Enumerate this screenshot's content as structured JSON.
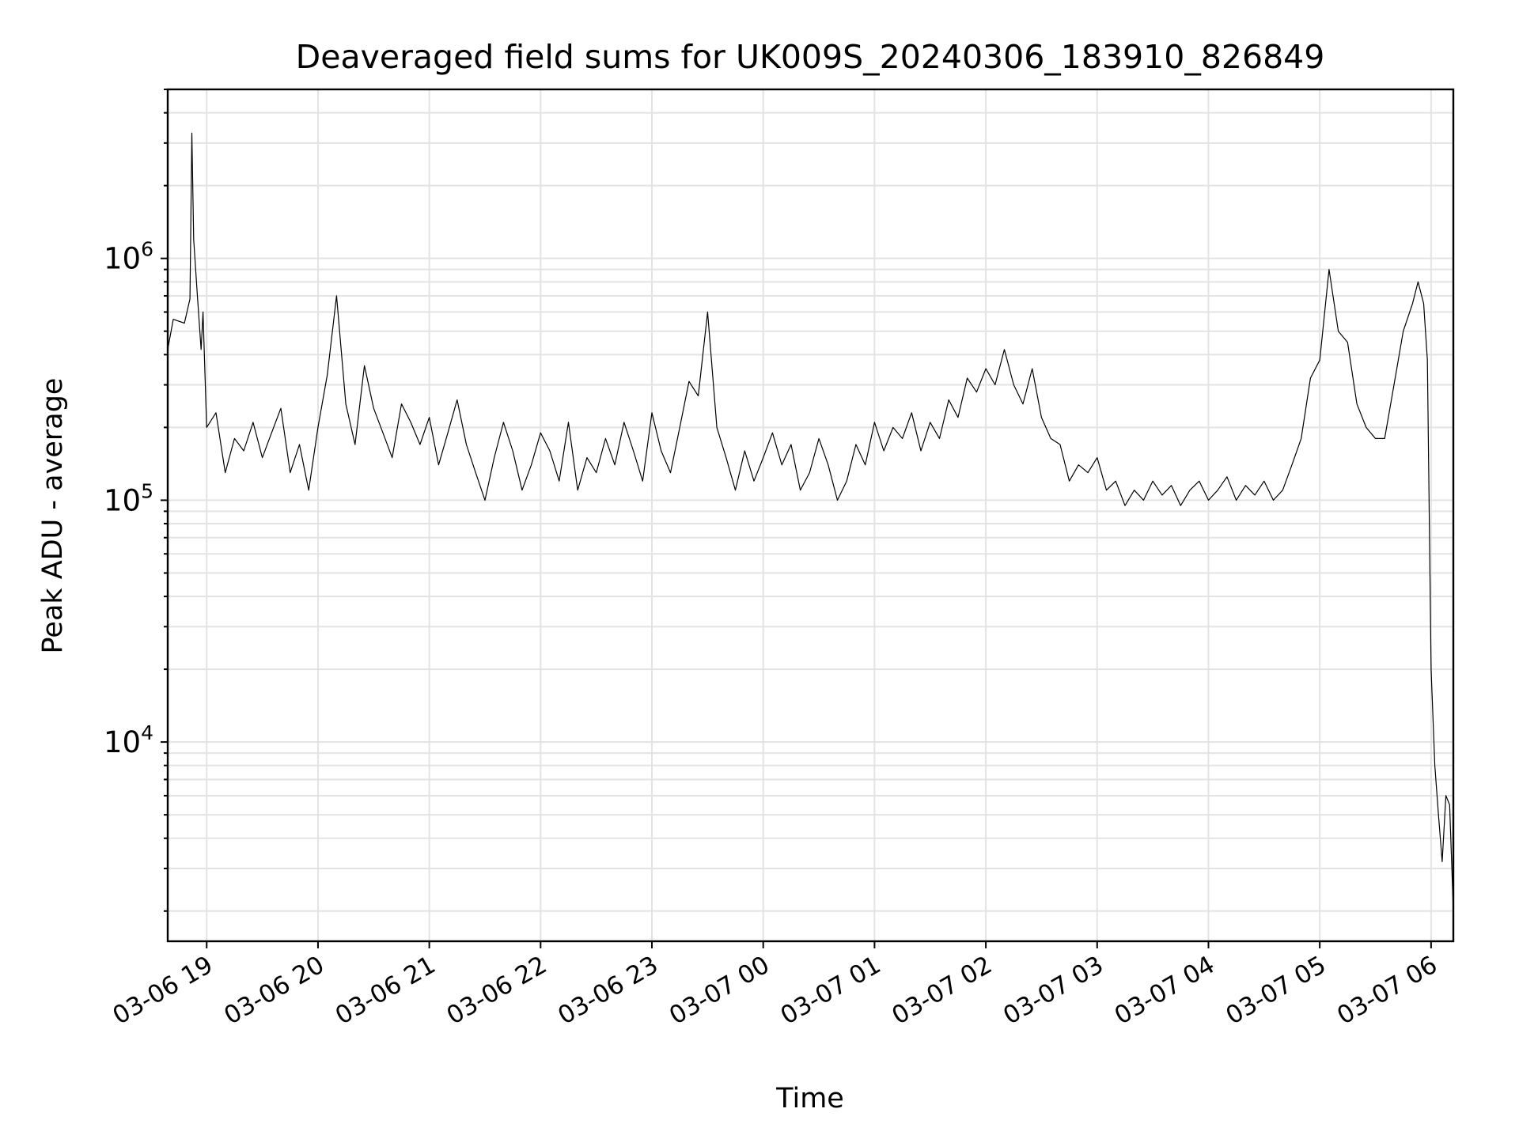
{
  "chart_data": {
    "type": "line",
    "title": "Deaveraged field sums for UK009S_20240306_183910_826849",
    "xlabel": "Time",
    "ylabel": "Peak ADU - average",
    "yscale": "log",
    "ylim": [
      1500,
      5000000
    ],
    "xlim": [
      "2024-03-06 18:39",
      "2024-03-07 06:12"
    ],
    "grid": true,
    "x_tick_labels": [
      "03-06 19",
      "03-06 20",
      "03-06 21",
      "03-06 22",
      "03-06 23",
      "03-07 00",
      "03-07 01",
      "03-07 02",
      "03-07 03",
      "03-07 04",
      "03-07 05",
      "03-07 06"
    ],
    "y_tick_labels": [
      {
        "base": "10",
        "exp": "4",
        "value": 10000
      },
      {
        "base": "10",
        "exp": "5",
        "value": 100000
      },
      {
        "base": "10",
        "exp": "6",
        "value": 1000000
      }
    ],
    "line_color": "#000000",
    "series": [
      {
        "x": [
          "2024-03-06 18:39",
          "2024-03-06 18:42",
          "2024-03-06 18:48",
          "2024-03-06 18:51",
          "2024-03-06 18:52",
          "2024-03-06 18:53",
          "2024-03-06 18:55",
          "2024-03-06 18:57",
          "2024-03-06 18:58",
          "2024-03-06 19:00",
          "2024-03-06 19:05",
          "2024-03-06 19:10",
          "2024-03-06 19:15",
          "2024-03-06 19:20",
          "2024-03-06 19:25",
          "2024-03-06 19:30",
          "2024-03-06 19:35",
          "2024-03-06 19:40",
          "2024-03-06 19:45",
          "2024-03-06 19:50",
          "2024-03-06 19:55",
          "2024-03-06 20:00",
          "2024-03-06 20:05",
          "2024-03-06 20:10",
          "2024-03-06 20:15",
          "2024-03-06 20:20",
          "2024-03-06 20:25",
          "2024-03-06 20:30",
          "2024-03-06 20:35",
          "2024-03-06 20:40",
          "2024-03-06 20:45",
          "2024-03-06 20:50",
          "2024-03-06 20:55",
          "2024-03-06 21:00",
          "2024-03-06 21:05",
          "2024-03-06 21:10",
          "2024-03-06 21:15",
          "2024-03-06 21:20",
          "2024-03-06 21:25",
          "2024-03-06 21:30",
          "2024-03-06 21:35",
          "2024-03-06 21:40",
          "2024-03-06 21:45",
          "2024-03-06 21:50",
          "2024-03-06 21:55",
          "2024-03-06 22:00",
          "2024-03-06 22:05",
          "2024-03-06 22:10",
          "2024-03-06 22:15",
          "2024-03-06 22:20",
          "2024-03-06 22:25",
          "2024-03-06 22:30",
          "2024-03-06 22:35",
          "2024-03-06 22:40",
          "2024-03-06 22:45",
          "2024-03-06 22:50",
          "2024-03-06 22:55",
          "2024-03-06 23:00",
          "2024-03-06 23:05",
          "2024-03-06 23:10",
          "2024-03-06 23:15",
          "2024-03-06 23:20",
          "2024-03-06 23:25",
          "2024-03-06 23:30",
          "2024-03-06 23:35",
          "2024-03-06 23:40",
          "2024-03-06 23:45",
          "2024-03-06 23:50",
          "2024-03-06 23:55",
          "2024-03-07 00:00",
          "2024-03-07 00:05",
          "2024-03-07 00:10",
          "2024-03-07 00:15",
          "2024-03-07 00:20",
          "2024-03-07 00:25",
          "2024-03-07 00:30",
          "2024-03-07 00:35",
          "2024-03-07 00:40",
          "2024-03-07 00:45",
          "2024-03-07 00:50",
          "2024-03-07 00:55",
          "2024-03-07 01:00",
          "2024-03-07 01:05",
          "2024-03-07 01:10",
          "2024-03-07 01:15",
          "2024-03-07 01:20",
          "2024-03-07 01:25",
          "2024-03-07 01:30",
          "2024-03-07 01:35",
          "2024-03-07 01:40",
          "2024-03-07 01:45",
          "2024-03-07 01:50",
          "2024-03-07 01:55",
          "2024-03-07 02:00",
          "2024-03-07 02:05",
          "2024-03-07 02:10",
          "2024-03-07 02:15",
          "2024-03-07 02:20",
          "2024-03-07 02:25",
          "2024-03-07 02:30",
          "2024-03-07 02:35",
          "2024-03-07 02:40",
          "2024-03-07 02:45",
          "2024-03-07 02:50",
          "2024-03-07 02:55",
          "2024-03-07 03:00",
          "2024-03-07 03:05",
          "2024-03-07 03:10",
          "2024-03-07 03:15",
          "2024-03-07 03:20",
          "2024-03-07 03:25",
          "2024-03-07 03:30",
          "2024-03-07 03:35",
          "2024-03-07 03:40",
          "2024-03-07 03:45",
          "2024-03-07 03:50",
          "2024-03-07 03:55",
          "2024-03-07 04:00",
          "2024-03-07 04:05",
          "2024-03-07 04:10",
          "2024-03-07 04:15",
          "2024-03-07 04:20",
          "2024-03-07 04:25",
          "2024-03-07 04:30",
          "2024-03-07 04:35",
          "2024-03-07 04:40",
          "2024-03-07 04:45",
          "2024-03-07 04:50",
          "2024-03-07 04:55",
          "2024-03-07 05:00",
          "2024-03-07 05:05",
          "2024-03-07 05:10",
          "2024-03-07 05:15",
          "2024-03-07 05:20",
          "2024-03-07 05:25",
          "2024-03-07 05:30",
          "2024-03-07 05:35",
          "2024-03-07 05:40",
          "2024-03-07 05:45",
          "2024-03-07 05:50",
          "2024-03-07 05:53",
          "2024-03-07 05:56",
          "2024-03-07 05:58",
          "2024-03-07 06:00",
          "2024-03-07 06:02",
          "2024-03-07 06:04",
          "2024-03-07 06:06",
          "2024-03-07 06:08",
          "2024-03-07 06:10",
          "2024-03-07 06:12"
        ],
        "y": [
          420000,
          560000,
          540000,
          680000,
          3300000,
          1200000,
          700000,
          420000,
          600000,
          200000,
          230000,
          130000,
          180000,
          160000,
          210000,
          150000,
          190000,
          240000,
          130000,
          170000,
          110000,
          200000,
          330000,
          700000,
          250000,
          170000,
          360000,
          240000,
          190000,
          150000,
          250000,
          210000,
          170000,
          220000,
          140000,
          190000,
          260000,
          170000,
          130000,
          100000,
          150000,
          210000,
          160000,
          110000,
          140000,
          190000,
          160000,
          120000,
          210000,
          110000,
          150000,
          130000,
          180000,
          140000,
          210000,
          160000,
          120000,
          230000,
          160000,
          130000,
          200000,
          310000,
          270000,
          600000,
          200000,
          150000,
          110000,
          160000,
          120000,
          150000,
          190000,
          140000,
          170000,
          110000,
          130000,
          180000,
          140000,
          100000,
          120000,
          170000,
          140000,
          210000,
          160000,
          200000,
          180000,
          230000,
          160000,
          210000,
          180000,
          260000,
          220000,
          320000,
          280000,
          350000,
          300000,
          420000,
          300000,
          250000,
          350000,
          220000,
          180000,
          170000,
          120000,
          140000,
          130000,
          150000,
          110000,
          120000,
          95000,
          110000,
          100000,
          120000,
          105000,
          115000,
          95000,
          110000,
          120000,
          100000,
          110000,
          125000,
          100000,
          115000,
          105000,
          120000,
          100000,
          110000,
          140000,
          180000,
          320000,
          380000,
          900000,
          500000,
          450000,
          250000,
          200000,
          180000,
          180000,
          300000,
          500000,
          650000,
          800000,
          650000,
          380000,
          20000,
          8000,
          5000,
          3200,
          6000,
          5500,
          2000
        ]
      }
    ]
  }
}
